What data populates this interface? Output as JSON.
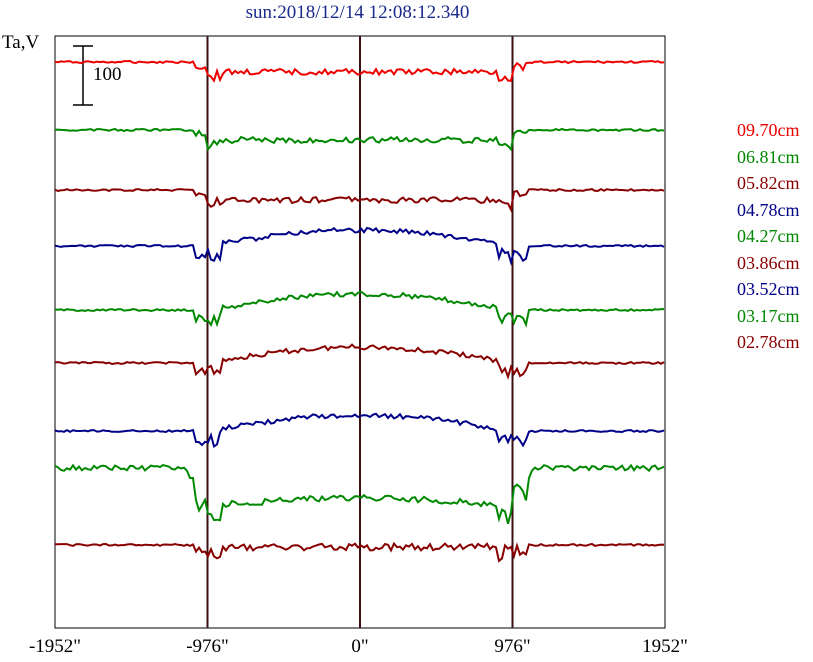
{
  "chart_data": {
    "type": "line",
    "title": "sun:2018/12/14 12:08:12.340",
    "ylabel": "Ta,V",
    "xlabel": "",
    "scale_bar_label": "100",
    "x_ticks": [
      "-1952\"",
      "-976\"",
      "0\"",
      "976\"",
      "1952\""
    ],
    "x_tick_values": [
      -1952,
      -976,
      0,
      976,
      1952
    ],
    "xlim": [
      -1952,
      1952
    ],
    "vertical_markers": [
      -976,
      0,
      976
    ],
    "legend_placement": "right",
    "series": [
      {
        "name": "09.70cm",
        "color": "#ee0000",
        "baseline": 62,
        "kind": "disk_up_small"
      },
      {
        "name": "06.81cm",
        "color": "#008800",
        "baseline": 130,
        "kind": "disk_up_small"
      },
      {
        "name": "05.82cm",
        "color": "#880000",
        "baseline": 190,
        "kind": "disk_up_small"
      },
      {
        "name": "04.78cm",
        "color": "#000088",
        "baseline": 246,
        "kind": "disk_up"
      },
      {
        "name": "04.27cm",
        "color": "#008800",
        "baseline": 310,
        "kind": "disk_up"
      },
      {
        "name": "03.86cm",
        "color": "#880000",
        "baseline": 363,
        "kind": "disk_up"
      },
      {
        "name": "03.52cm",
        "color": "#000088",
        "baseline": 431,
        "kind": "disk_up"
      },
      {
        "name": "03.17cm",
        "color": "#008800",
        "baseline": 478,
        "kind": "disk_down"
      },
      {
        "name": "02.78cm",
        "color": "#880000",
        "baseline": 545,
        "kind": "flat_noise"
      }
    ]
  }
}
